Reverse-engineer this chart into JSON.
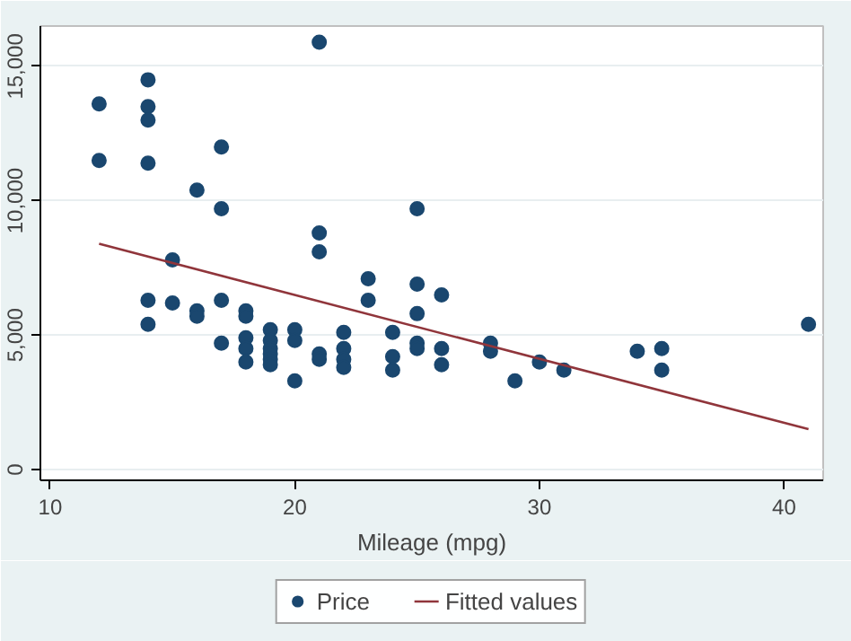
{
  "chart_data": {
    "type": "scatter",
    "xlabel": "Mileage (mpg)",
    "xlim": [
      9.6,
      41.6
    ],
    "ylim": [
      -400,
      16500
    ],
    "xticks": [
      10,
      20,
      30,
      40
    ],
    "yticks": [
      {
        "value": 0,
        "label": "0"
      },
      {
        "value": 5000,
        "label": "5,000"
      },
      {
        "value": 10000,
        "label": "10,000"
      },
      {
        "value": 15000,
        "label": "15,000"
      }
    ],
    "grid": "y",
    "legend": "bottom",
    "marker": "circle",
    "series": [
      {
        "name": "Price",
        "color": "#1a476f",
        "x": [
          12,
          12,
          14,
          14,
          14,
          14,
          14,
          14,
          15,
          15,
          16,
          16,
          16,
          17,
          17,
          17,
          17,
          18,
          18,
          18,
          18,
          18,
          19,
          19,
          19,
          19,
          19,
          19,
          20,
          20,
          20,
          21,
          21,
          21,
          21,
          21,
          22,
          22,
          22,
          22,
          23,
          23,
          24,
          24,
          24,
          25,
          25,
          25,
          25,
          25,
          26,
          26,
          26,
          28,
          28,
          29,
          30,
          31,
          34,
          35,
          35,
          41
        ],
        "values": [
          13600,
          11500,
          14500,
          13500,
          13000,
          11400,
          6300,
          5400,
          7800,
          6200,
          10400,
          5900,
          5700,
          12000,
          9700,
          6300,
          4700,
          5900,
          5700,
          4900,
          4500,
          4000,
          5200,
          4800,
          4500,
          4300,
          4100,
          3900,
          5200,
          4800,
          3300,
          15900,
          8800,
          8100,
          4300,
          4100,
          5100,
          4500,
          4100,
          3800,
          7100,
          6300,
          5100,
          4200,
          3700,
          9700,
          6900,
          5800,
          4700,
          4500,
          6500,
          4500,
          3900,
          4700,
          4400,
          3300,
          4000,
          3700,
          4400,
          4500,
          3700,
          5400
        ]
      },
      {
        "name": "Fitted values",
        "type": "line",
        "marker": "none",
        "color": "#90353b",
        "x": [
          12,
          41
        ],
        "values": [
          8400,
          1500
        ]
      }
    ]
  }
}
